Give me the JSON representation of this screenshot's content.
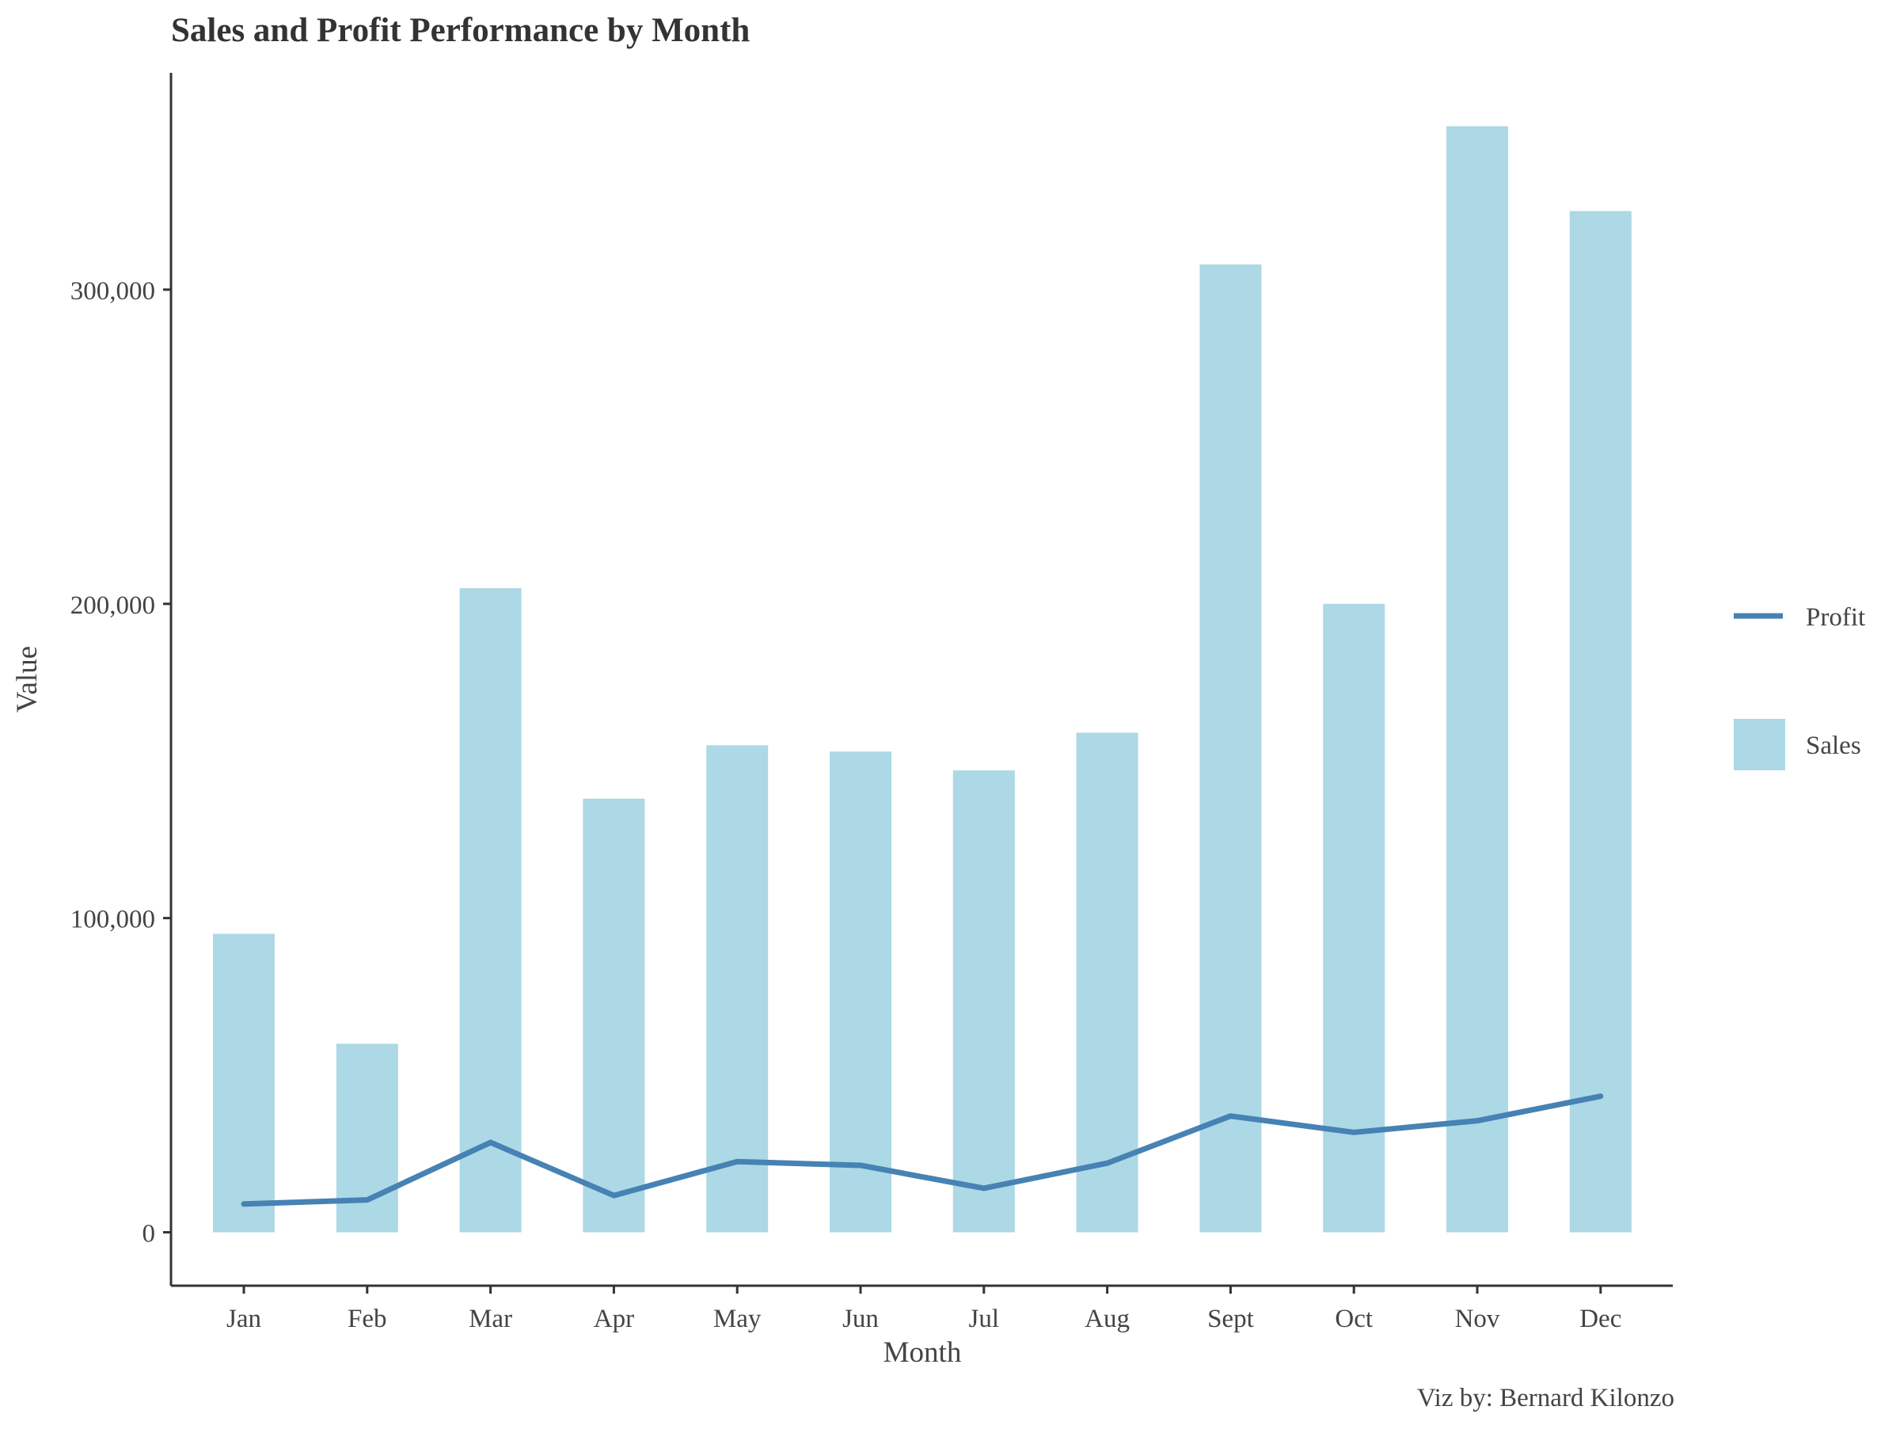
{
  "chart_data": {
    "type": "bar",
    "title": "Sales and Profit Performance by Month",
    "xlabel": "Month",
    "ylabel": "Value",
    "caption": "Viz by: Bernard Kilonzo",
    "categories": [
      "Jan",
      "Feb",
      "Mar",
      "Apr",
      "May",
      "Jun",
      "Jul",
      "Aug",
      "Sept",
      "Oct",
      "Nov",
      "Dec"
    ],
    "yticks": [
      0,
      100000,
      200000,
      300000
    ],
    "ytick_labels": [
      "0",
      "100,000",
      "200,000",
      "300,000"
    ],
    "ylim": [
      -17000,
      369000
    ],
    "grid": false,
    "legend_position": "right",
    "series": [
      {
        "name": "Sales",
        "type": "bar",
        "color": "#ADD8E6",
        "values": [
          95000,
          60000,
          205000,
          138000,
          155000,
          153000,
          147000,
          159000,
          308000,
          200000,
          352000,
          325000
        ]
      },
      {
        "name": "Profit",
        "type": "line",
        "color": "#4682B4",
        "values": [
          9000,
          10300,
          28600,
          11700,
          22500,
          21300,
          14000,
          22000,
          37000,
          31800,
          35500,
          43300
        ]
      }
    ],
    "colors": {
      "axis": "#333333",
      "text": "#444444",
      "title": "#333333"
    }
  }
}
